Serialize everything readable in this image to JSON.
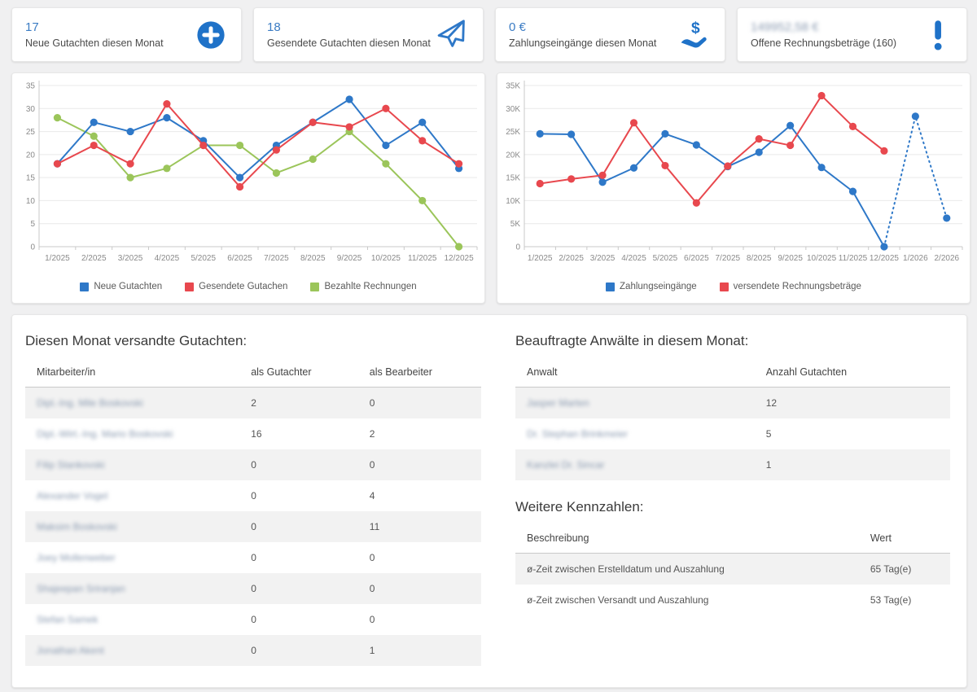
{
  "cards": [
    {
      "value": "17",
      "label": "Neue Gutachten diesen Monat",
      "icon": "plus-circle-icon",
      "redacted": false
    },
    {
      "value": "18",
      "label": "Gesendete Gutachten diesen Monat",
      "icon": "paper-plane-icon",
      "redacted": false
    },
    {
      "value": "0 €",
      "label": "Zahlungseingänge diesen Monat",
      "icon": "hand-dollar-icon",
      "redacted": false
    },
    {
      "value": "149952,58 €",
      "label": "Offene Rechnungsbeträge (160)",
      "icon": "exclamation-icon",
      "redacted": true
    }
  ],
  "colors": {
    "accent_blue": "#1f72c8",
    "chart_blue": "#2e78c8",
    "chart_red": "#e8484e",
    "chart_green": "#9bc55a",
    "grid": "#e9e9e9",
    "axis": "#c9c9c9",
    "tick_text": "#8a8a8a"
  },
  "chart_data": [
    {
      "type": "line",
      "title": "",
      "xlabel": "",
      "ylabel": "",
      "ylim": [
        0,
        35
      ],
      "ystep": 5,
      "y_format": "plain",
      "grid": true,
      "legend_position": "bottom",
      "categories": [
        "1/2025",
        "2/2025",
        "3/2025",
        "4/2025",
        "5/2025",
        "6/2025",
        "7/2025",
        "8/2025",
        "9/2025",
        "10/2025",
        "11/2025",
        "12/2025"
      ],
      "series": [
        {
          "name": "Neue Gutachten",
          "color": "#2e78c8",
          "z": 1,
          "values": [
            18,
            27,
            25,
            28,
            23,
            15,
            22,
            27,
            32,
            22,
            27,
            17
          ]
        },
        {
          "name": "Gesendete Gutachen",
          "color": "#e8484e",
          "z": 2,
          "values": [
            18,
            22,
            18,
            31,
            22,
            13,
            21,
            27,
            26,
            30,
            23,
            18
          ]
        },
        {
          "name": "Bezahlte Rechnungen",
          "color": "#9bc55a",
          "z": 0,
          "values": [
            28,
            24,
            15,
            17,
            22,
            22,
            16,
            19,
            25,
            18,
            10,
            0
          ]
        }
      ]
    },
    {
      "type": "line",
      "title": "",
      "xlabel": "",
      "ylabel": "",
      "ylim": [
        0,
        35000
      ],
      "ystep": 5000,
      "y_format": "k",
      "grid": true,
      "legend_position": "bottom",
      "categories": [
        "1/2025",
        "2/2025",
        "3/2025",
        "4/2025",
        "5/2025",
        "6/2025",
        "7/2025",
        "8/2025",
        "9/2025",
        "10/2025",
        "11/2025",
        "12/2025",
        "1/2026",
        "2/2026"
      ],
      "series": [
        {
          "name": "Zahlungseingänge",
          "color": "#2e78c8",
          "z": 0,
          "dashed_after": 11,
          "values": [
            24500,
            24400,
            14000,
            17100,
            24500,
            22100,
            17400,
            20500,
            26300,
            17200,
            12000,
            0,
            28300,
            6200
          ]
        },
        {
          "name": "versendete Rechnungsbeträge",
          "color": "#e8484e",
          "z": 1,
          "values": [
            13700,
            14700,
            15500,
            26900,
            17600,
            9500,
            17500,
            23400,
            22000,
            32800,
            26100,
            20800,
            null,
            null
          ]
        }
      ]
    }
  ],
  "gutachten_table": {
    "title": "Diesen Monat versandte Gutachten:",
    "headers": [
      "Mitarbeiter/in",
      "als Gutachter",
      "als Bearbeiter"
    ],
    "redact_first_column": true,
    "rows": [
      [
        "Dipl.-Ing. Mile Boskovski",
        "2",
        "0"
      ],
      [
        "Dipl.-Wirt.-Ing. Mario Boskovski",
        "16",
        "2"
      ],
      [
        "Filip Stankovski",
        "0",
        "0"
      ],
      [
        "Alexander Vogel",
        "0",
        "4"
      ],
      [
        "Maksim Boskovski",
        "0",
        "11"
      ],
      [
        "Joey Mollenweber",
        "0",
        "0"
      ],
      [
        "Shajeepan Sriranjan",
        "0",
        "0"
      ],
      [
        "Stefan Samek",
        "0",
        "0"
      ],
      [
        "Jonathan Akent",
        "0",
        "1"
      ]
    ]
  },
  "anwaelte_table": {
    "title": "Beauftragte Anwälte in diesem Monat:",
    "headers": [
      "Anwalt",
      "Anzahl Gutachten"
    ],
    "redact_first_column": true,
    "rows": [
      [
        "Jasper Marten",
        "12"
      ],
      [
        "Dr. Stephan Brinkmeier",
        "5"
      ],
      [
        "Kanzlei Dr. Sincar",
        "1"
      ]
    ]
  },
  "kennzahlen_table": {
    "title": "Weitere Kennzahlen:",
    "headers": [
      "Beschreibung",
      "Wert"
    ],
    "redact_first_column": false,
    "rows": [
      [
        "ø-Zeit zwischen Erstelldatum und Auszahlung",
        "65 Tag(e)"
      ],
      [
        "ø-Zeit zwischen Versandt und Auszahlung",
        "53 Tag(e)"
      ]
    ]
  }
}
